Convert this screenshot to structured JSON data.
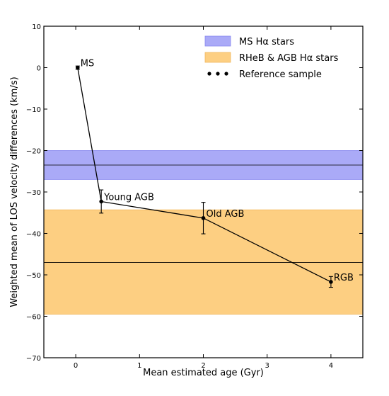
{
  "chart_data": {
    "type": "line",
    "title": "",
    "xlabel": "Mean estimated age (Gyr)",
    "ylabel": "Weighted mean of LOS velocity differences (km/s)",
    "xlim": [
      -0.5,
      4.5
    ],
    "ylim": [
      -70,
      10
    ],
    "xticks": [
      0,
      1,
      2,
      3,
      4
    ],
    "yticks": [
      10,
      0,
      -10,
      -20,
      -30,
      -40,
      -50,
      -60,
      -70
    ],
    "grid": false,
    "legend_position": "top-right",
    "bands": [
      {
        "name": "MS Hα stars",
        "lower": -27.0,
        "upper": -20.0,
        "center": -23.5,
        "color": "#aaaaf7",
        "edge": "#8888ee"
      },
      {
        "name": "RHeB & AGB Hα stars",
        "lower": -59.5,
        "upper": -34.3,
        "center": -47.0,
        "color": "#fdcf82",
        "edge": "#f0b860"
      }
    ],
    "series": [
      {
        "name": "Reference sample",
        "points": [
          {
            "label": "MS",
            "x": 0.03,
            "y": 0.0,
            "yerr": 0.4
          },
          {
            "label": "Young AGB",
            "x": 0.4,
            "y": -32.3,
            "yerr": 2.8
          },
          {
            "label": "Old AGB",
            "x": 2.0,
            "y": -36.3,
            "yerr": 3.8
          },
          {
            "label": "RGB",
            "x": 4.0,
            "y": -51.7,
            "yerr": 1.3
          }
        ]
      }
    ]
  }
}
